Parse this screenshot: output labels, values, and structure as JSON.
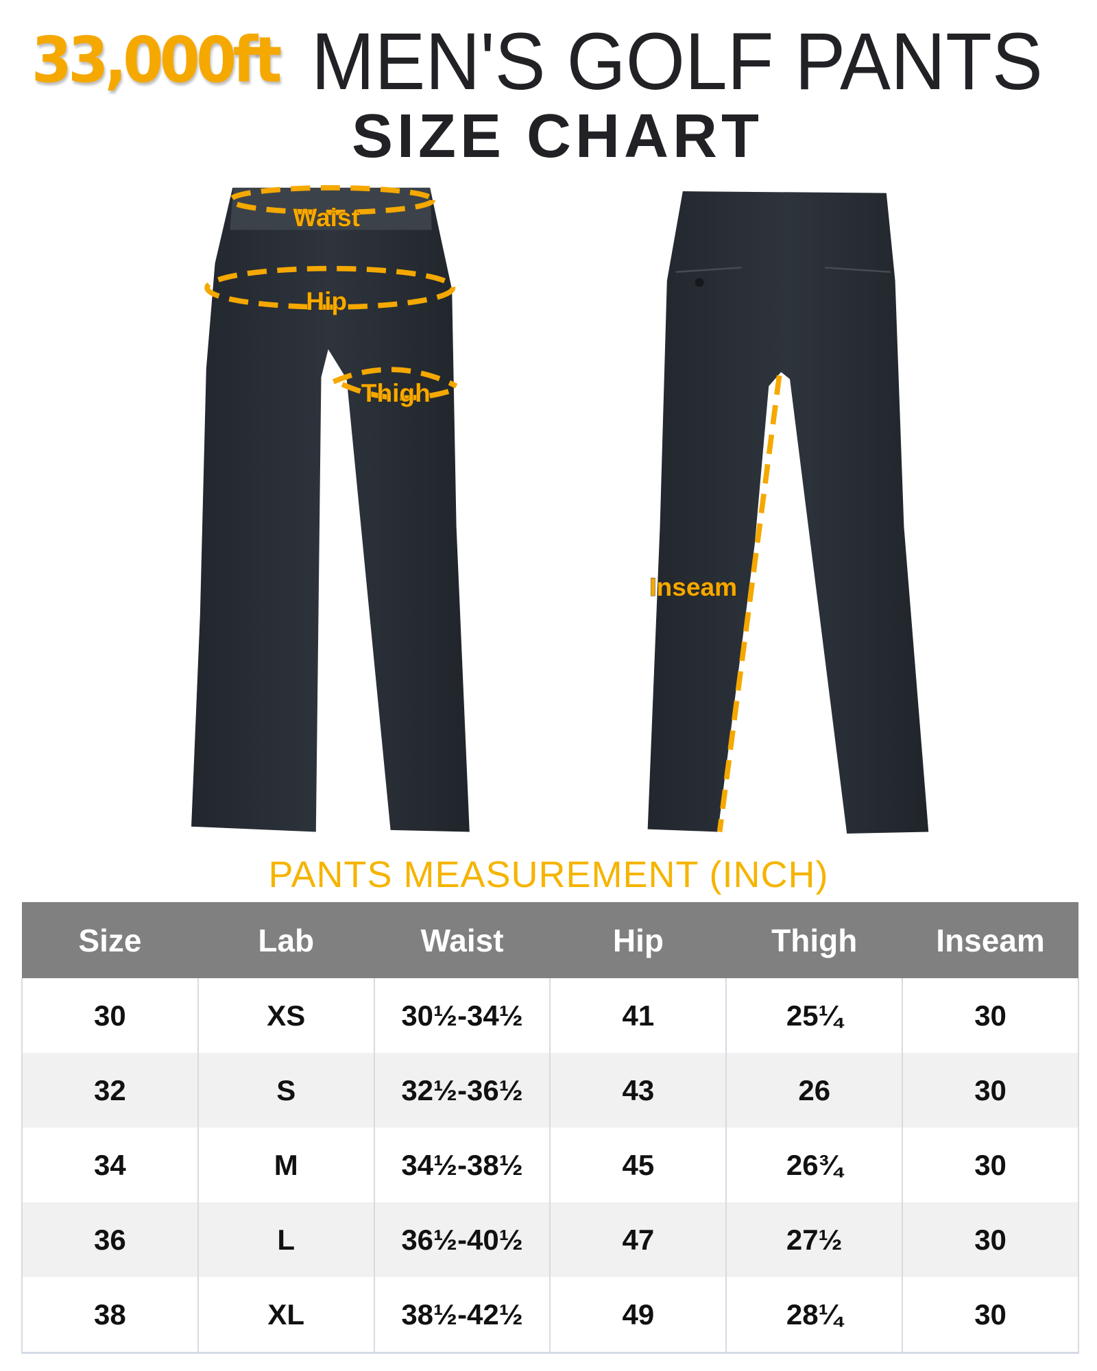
{
  "brand": {
    "logo_text": "33,000ft",
    "color": "#f5a800"
  },
  "header": {
    "title": "MEN'S GOLF PANTS",
    "subtitle": "SIZE CHART"
  },
  "diagram": {
    "labels": {
      "waist": "Waist",
      "hip": "Hip",
      "thigh": "Thigh",
      "inseam": "Inseam"
    },
    "dash_color": "#f5a800",
    "pants_color": "#2a2f36"
  },
  "measurement": {
    "title": "PANTS MEASUREMENT (INCH)",
    "columns": [
      "Size",
      "Lab",
      "Waist",
      "Hip",
      "Thigh",
      "Inseam"
    ],
    "rows": [
      [
        "30",
        "XS",
        "30½-34½",
        "41",
        "25¼",
        "30"
      ],
      [
        "32",
        "S",
        "32½-36½",
        "43",
        "26",
        "30"
      ],
      [
        "34",
        "M",
        "34½-38½",
        "45",
        "26¾",
        "30"
      ],
      [
        "36",
        "L",
        "36½-40½",
        "47",
        "27½",
        "30"
      ],
      [
        "38",
        "XL",
        "38½-42½",
        "49",
        "28¼",
        "30"
      ]
    ]
  }
}
